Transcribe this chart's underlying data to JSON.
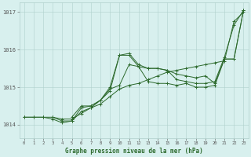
{
  "xlabel": "Graphe pression niveau de la mer (hPa)",
  "ylim": [
    1013.65,
    1017.25
  ],
  "xlim": [
    -0.5,
    23.5
  ],
  "yticks": [
    1014,
    1015,
    1016,
    1017
  ],
  "ytick_labels": [
    "1014",
    "1015",
    "1016",
    "1017"
  ],
  "xticks": [
    0,
    1,
    2,
    3,
    4,
    5,
    6,
    7,
    8,
    9,
    10,
    11,
    12,
    13,
    14,
    15,
    16,
    17,
    18,
    19,
    20,
    21,
    22,
    23
  ],
  "bg_color": "#d8f0ee",
  "grid_color": "#b0d0cc",
  "line_color": "#2d6a2d",
  "series": [
    {
      "x": [
        0,
        1,
        2,
        3,
        4,
        5,
        6,
        7,
        8,
        9,
        10,
        11,
        12,
        13,
        14,
        15,
        16,
        17,
        18,
        19,
        20,
        21,
        22,
        23
      ],
      "y": [
        1014.2,
        1014.2,
        1014.2,
        1014.2,
        1014.15,
        1014.15,
        1014.3,
        1014.45,
        1014.55,
        1014.75,
        1014.95,
        1015.05,
        1015.1,
        1015.2,
        1015.3,
        1015.4,
        1015.45,
        1015.5,
        1015.55,
        1015.6,
        1015.65,
        1015.7,
        1016.75,
        1017.0
      ]
    },
    {
      "x": [
        0,
        1,
        2,
        3,
        4,
        5,
        6,
        7,
        8,
        9,
        10,
        11,
        12,
        13,
        14,
        15,
        16,
        17,
        18,
        19,
        20,
        21,
        22,
        23
      ],
      "y": [
        1014.2,
        1014.2,
        1014.2,
        1014.15,
        1014.05,
        1014.1,
        1014.35,
        1014.45,
        1014.65,
        1015.0,
        1015.85,
        1015.9,
        1015.6,
        1015.5,
        1015.5,
        1015.45,
        1015.2,
        1015.15,
        1015.1,
        1015.1,
        1015.15,
        1015.8,
        1016.65,
        1017.05
      ]
    },
    {
      "x": [
        3,
        4,
        5,
        6,
        7,
        8,
        9,
        10,
        11,
        12,
        13,
        14,
        15,
        16,
        17,
        18,
        19,
        20,
        21,
        22,
        23
      ],
      "y": [
        1014.2,
        1014.1,
        1014.1,
        1014.45,
        1014.5,
        1014.65,
        1014.9,
        1015.85,
        1015.85,
        1015.55,
        1015.5,
        1015.5,
        1015.45,
        1015.35,
        1015.3,
        1015.25,
        1015.3,
        1015.1,
        1015.75,
        1015.75,
        1017.05
      ]
    },
    {
      "x": [
        5,
        6,
        7,
        8,
        9,
        10,
        11,
        12,
        13,
        14,
        15,
        16,
        17,
        18,
        19,
        20,
        21,
        22,
        23
      ],
      "y": [
        1014.2,
        1014.5,
        1014.5,
        1014.65,
        1014.95,
        1015.05,
        1015.6,
        1015.55,
        1015.15,
        1015.1,
        1015.1,
        1015.05,
        1015.1,
        1015.0,
        1015.0,
        1015.05,
        1015.75,
        1015.75,
        1017.05
      ]
    }
  ]
}
